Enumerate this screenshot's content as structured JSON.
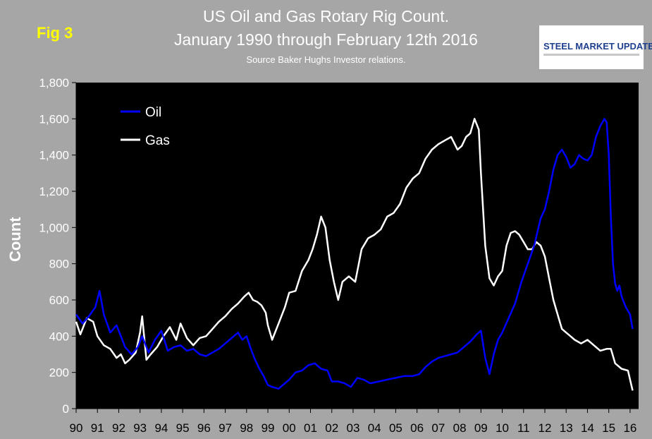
{
  "figure": {
    "fig_label": "Fig 3",
    "title_line1": "US Oil and Gas Rotary Rig Count.",
    "title_line2": "January 1990 through February 12th 2016",
    "subtitle": "Source Baker Hughs Investor relations.",
    "logo_text": "STEEL MARKET UPDATE"
  },
  "chart_data": {
    "type": "line",
    "ylabel": "Count",
    "xlabel": "",
    "ylim": [
      0,
      1800
    ],
    "yticks": [
      0,
      200,
      400,
      600,
      800,
      1000,
      1200,
      1400,
      1600,
      1800
    ],
    "ytick_labels": [
      "0",
      "200",
      "400",
      "600",
      "800",
      "1,000",
      "1,200",
      "1,400",
      "1,600",
      "1,800"
    ],
    "xlim": [
      1990.0,
      2016.4
    ],
    "xticks": [
      1990,
      1991,
      1992,
      1993,
      1994,
      1995,
      1996,
      1997,
      1998,
      1999,
      2000,
      2001,
      2002,
      2003,
      2004,
      2005,
      2006,
      2007,
      2008,
      2009,
      2010,
      2011,
      2012,
      2013,
      2014,
      2015,
      2016
    ],
    "xtick_labels": [
      "90",
      "91",
      "92",
      "93",
      "94",
      "95",
      "96",
      "97",
      "98",
      "99",
      "00",
      "01",
      "02",
      "03",
      "04",
      "05",
      "06",
      "07",
      "08",
      "09",
      "10",
      "11",
      "12",
      "13",
      "14",
      "15",
      "16"
    ],
    "grid": false,
    "legend_position": "top-left",
    "background": "#000000",
    "series": [
      {
        "name": "Oil",
        "color": "#0000ff",
        "x": [
          1990.0,
          1990.3,
          1990.6,
          1990.9,
          1991.1,
          1991.3,
          1991.6,
          1991.9,
          1992.1,
          1992.3,
          1992.6,
          1992.9,
          1993.1,
          1993.4,
          1993.7,
          1994.0,
          1994.3,
          1994.6,
          1994.9,
          1995.2,
          1995.5,
          1995.8,
          1996.1,
          1996.4,
          1996.7,
          1997.0,
          1997.3,
          1997.6,
          1997.8,
          1998.0,
          1998.2,
          1998.4,
          1998.6,
          1998.8,
          1999.0,
          1999.2,
          1999.5,
          1999.8,
          2000.0,
          2000.3,
          2000.6,
          2000.9,
          2001.2,
          2001.5,
          2001.8,
          2002.0,
          2002.3,
          2002.6,
          2002.9,
          2003.2,
          2003.5,
          2003.8,
          2004.2,
          2004.6,
          2005.0,
          2005.4,
          2005.8,
          2006.1,
          2006.4,
          2006.7,
          2007.0,
          2007.3,
          2007.6,
          2007.9,
          2008.2,
          2008.5,
          2008.8,
          2009.0,
          2009.2,
          2009.4,
          2009.6,
          2009.8,
          2010.0,
          2010.3,
          2010.6,
          2010.9,
          2011.2,
          2011.5,
          2011.8,
          2012.0,
          2012.2,
          2012.4,
          2012.6,
          2012.8,
          2013.0,
          2013.2,
          2013.4,
          2013.6,
          2013.8,
          2014.0,
          2014.2,
          2014.4,
          2014.6,
          2014.8,
          2014.9,
          2015.0,
          2015.1,
          2015.2,
          2015.3,
          2015.4,
          2015.5,
          2015.6,
          2015.8,
          2016.0,
          2016.12
        ],
        "y": [
          520,
          470,
          510,
          560,
          650,
          520,
          420,
          460,
          400,
          340,
          300,
          340,
          400,
          310,
          380,
          430,
          320,
          340,
          350,
          320,
          330,
          300,
          290,
          310,
          330,
          360,
          390,
          420,
          380,
          400,
          330,
          270,
          220,
          180,
          130,
          120,
          110,
          140,
          160,
          200,
          210,
          240,
          250,
          220,
          210,
          150,
          150,
          140,
          120,
          170,
          160,
          140,
          150,
          160,
          170,
          180,
          180,
          190,
          230,
          260,
          280,
          290,
          300,
          310,
          340,
          370,
          410,
          430,
          280,
          190,
          300,
          380,
          420,
          500,
          580,
          700,
          800,
          900,
          1050,
          1100,
          1200,
          1320,
          1400,
          1430,
          1390,
          1330,
          1350,
          1400,
          1380,
          1370,
          1400,
          1500,
          1560,
          1600,
          1580,
          1400,
          1050,
          800,
          690,
          650,
          680,
          620,
          560,
          520,
          440
        ]
      },
      {
        "name": "Gas",
        "color": "#ffffff",
        "x": [
          1990.0,
          1990.2,
          1990.5,
          1990.8,
          1991.0,
          1991.3,
          1991.6,
          1991.9,
          1992.1,
          1992.3,
          1992.5,
          1992.8,
          1993.0,
          1993.1,
          1993.3,
          1993.5,
          1993.8,
          1994.1,
          1994.4,
          1994.7,
          1994.9,
          1995.2,
          1995.5,
          1995.8,
          1996.1,
          1996.4,
          1996.7,
          1997.0,
          1997.3,
          1997.6,
          1997.9,
          1998.1,
          1998.3,
          1998.5,
          1998.7,
          1998.9,
          1999.0,
          1999.2,
          1999.5,
          1999.8,
          2000.0,
          2000.3,
          2000.6,
          2000.9,
          2001.1,
          2001.3,
          2001.5,
          2001.7,
          2001.9,
          2002.1,
          2002.3,
          2002.5,
          2002.8,
          2003.1,
          2003.4,
          2003.7,
          2004.0,
          2004.3,
          2004.6,
          2004.9,
          2005.2,
          2005.5,
          2005.8,
          2006.1,
          2006.4,
          2006.7,
          2007.0,
          2007.3,
          2007.6,
          2007.9,
          2008.1,
          2008.3,
          2008.5,
          2008.7,
          2008.9,
          2009.0,
          2009.2,
          2009.4,
          2009.6,
          2009.8,
          2010.0,
          2010.2,
          2010.4,
          2010.6,
          2010.8,
          2011.0,
          2011.2,
          2011.4,
          2011.6,
          2011.8,
          2012.0,
          2012.2,
          2012.4,
          2012.6,
          2012.8,
          2013.0,
          2013.2,
          2013.4,
          2013.7,
          2014.0,
          2014.3,
          2014.6,
          2014.9,
          2015.1,
          2015.3,
          2015.6,
          2015.9,
          2016.12
        ],
        "y": [
          480,
          410,
          500,
          480,
          400,
          350,
          330,
          280,
          300,
          250,
          270,
          310,
          420,
          510,
          270,
          300,
          340,
          400,
          450,
          380,
          470,
          390,
          350,
          390,
          400,
          440,
          480,
          510,
          550,
          580,
          620,
          640,
          600,
          590,
          570,
          530,
          460,
          380,
          470,
          560,
          640,
          650,
          760,
          820,
          880,
          960,
          1060,
          1000,
          820,
          700,
          600,
          700,
          730,
          700,
          880,
          940,
          960,
          990,
          1060,
          1080,
          1130,
          1220,
          1270,
          1300,
          1380,
          1430,
          1460,
          1480,
          1500,
          1430,
          1450,
          1500,
          1520,
          1600,
          1540,
          1300,
          900,
          720,
          680,
          730,
          760,
          900,
          970,
          980,
          960,
          920,
          880,
          880,
          920,
          900,
          840,
          720,
          600,
          520,
          440,
          420,
          400,
          380,
          360,
          380,
          350,
          320,
          330,
          330,
          250,
          220,
          210,
          100
        ]
      }
    ]
  }
}
